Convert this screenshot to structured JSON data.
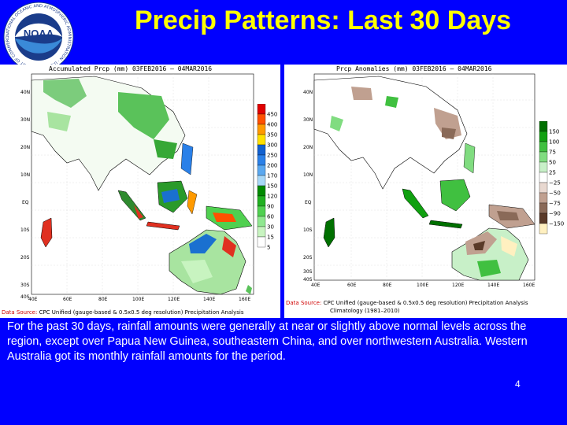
{
  "slide": {
    "title": "Precip Patterns: Last 30 Days",
    "logo": {
      "text": "NOAA",
      "ring_text": "NATIONAL OCEANIC AND ATMOSPHERIC ADMINISTRATION · U.S. DEPARTMENT OF COMMERCE"
    },
    "caption": "For the past 30 days,  rainfall amounts were generally at near or slightly above normal levels across the region, except over  Papua New Guinea, southeastern China, and over northwestern Australia.  Western Australia got its monthly rainfall amounts for the period.",
    "page_number": "4"
  },
  "left_map": {
    "title": "Accumulated Prcp (mm)  03FEB2016 – 04MAR2016",
    "lat_labels": [
      "40N",
      "30N",
      "20N",
      "10N",
      "EQ",
      "10S",
      "20S",
      "30S",
      "40S"
    ],
    "lon_labels": [
      "40E",
      "60E",
      "80E",
      "100E",
      "120E",
      "140E",
      "160E"
    ],
    "legend": [
      "450",
      "400",
      "350",
      "300",
      "250",
      "200",
      "170",
      "150",
      "120",
      "90",
      "60",
      "30",
      "15",
      "5"
    ],
    "legend_colors": [
      "#e00000",
      "#ff5000",
      "#ff9a00",
      "#ffe000",
      "#1060d0",
      "#2a80e8",
      "#5aa8f0",
      "#a8d8f8",
      "#008a00",
      "#20b020",
      "#50d050",
      "#90e890",
      "#c8f4c0",
      "#ffffff"
    ],
    "source_label": "Data Source:",
    "source_text": "CPC Unified (gauge-based & 0.5x0.5 deg resolution) Precipitation Analysis"
  },
  "right_map": {
    "title": "Prcp Anomalies (mm)  03FEB2016 – 04MAR2016",
    "lat_labels": [
      "40N",
      "30N",
      "20N",
      "10N",
      "EQ",
      "10S",
      "20S",
      "30S",
      "40S"
    ],
    "lon_labels": [
      "40E",
      "60E",
      "80E",
      "100E",
      "120E",
      "140E",
      "160E"
    ],
    "legend": [
      "150",
      "100",
      "75",
      "50",
      "25",
      "−25",
      "−50",
      "−75",
      "−90",
      "−150"
    ],
    "legend_colors": [
      "#007000",
      "#10a010",
      "#40c040",
      "#80dc80",
      "#c8f0c8",
      "#ffffff",
      "#e8d8d0",
      "#c0a090",
      "#8a6a58",
      "#5a3a28",
      "#fff0c0"
    ],
    "source_label": "Data Source:",
    "source_text": "CPC Unified (gauge-based & 0.5x0.5 deg resolution) Precipitation Analysis",
    "climatology": "Climatology (1981–2010)"
  },
  "colors": {
    "background": "#0000ff",
    "title": "#ffff00",
    "caption": "#ffffff"
  }
}
